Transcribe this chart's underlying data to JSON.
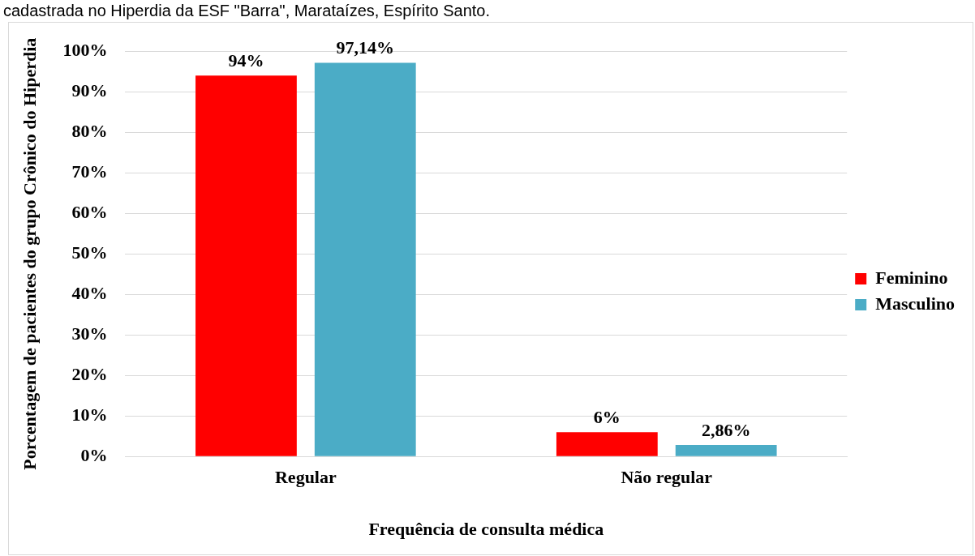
{
  "chart_data": {
    "type": "bar",
    "title": "cadastrada no Hiperdia da ESF \"Barra\", Marataízes, Espírito Santo.",
    "xlabel": "Frequência de consulta médica",
    "ylabel": "Porcentagem de pacientes do grupo Crônico do Hiperdia",
    "categories": [
      "Regular",
      "Não regular"
    ],
    "series": [
      {
        "name": "Feminino",
        "color": "#ff0000",
        "values": [
          94,
          6
        ],
        "value_labels": [
          "94%",
          "6%"
        ]
      },
      {
        "name": "Masculino",
        "color": "#4bacc6",
        "values": [
          97.14,
          2.86
        ],
        "value_labels": [
          "97,14%",
          "2,86%"
        ]
      }
    ],
    "ylim": [
      0,
      100
    ],
    "yticks": [
      {
        "value": 0,
        "label": "0%"
      },
      {
        "value": 10,
        "label": "10%"
      },
      {
        "value": 20,
        "label": "20%"
      },
      {
        "value": 30,
        "label": "30%"
      },
      {
        "value": 40,
        "label": "40%"
      },
      {
        "value": 50,
        "label": "50%"
      },
      {
        "value": 60,
        "label": "60%"
      },
      {
        "value": 70,
        "label": "70%"
      },
      {
        "value": 80,
        "label": "80%"
      },
      {
        "value": 90,
        "label": "90%"
      },
      {
        "value": 100,
        "label": "100%"
      }
    ],
    "grid": "y",
    "legend": "right"
  }
}
